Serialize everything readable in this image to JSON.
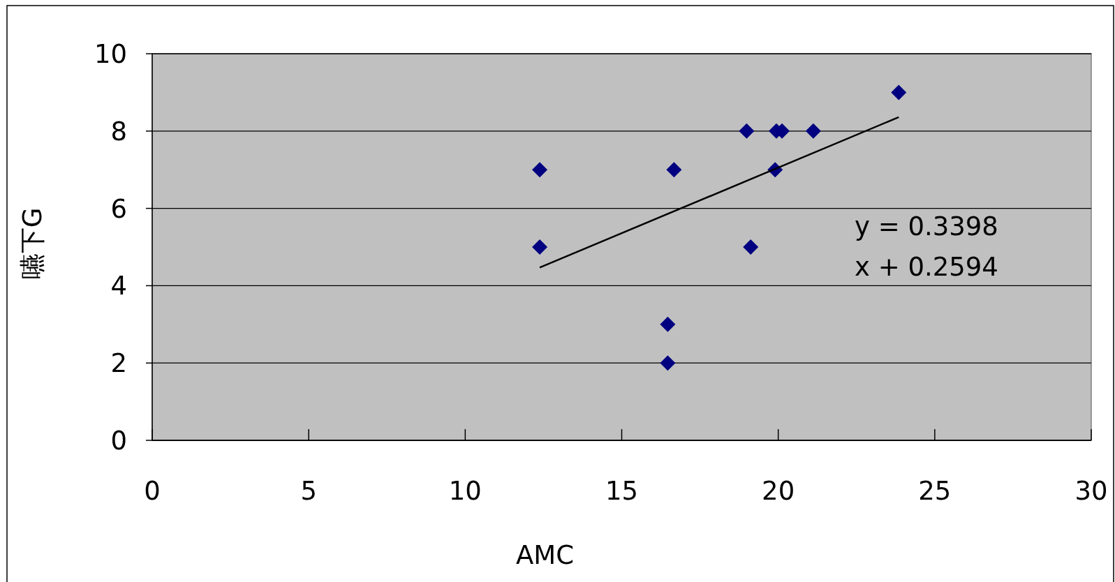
{
  "chart_data": {
    "type": "scatter",
    "xlabel": "AMC",
    "ylabel": "嚥下G",
    "series": [
      {
        "type": "scatter",
        "color": "#000080",
        "marker": "diamond",
        "x": [
          12.38,
          12.38,
          16.67,
          16.47,
          16.47,
          18.99,
          19.12,
          19.9,
          19.94,
          20.12,
          21.12,
          23.85
        ],
        "values": [
          7,
          5,
          7,
          3,
          2,
          8,
          5,
          7,
          8,
          8,
          8,
          9
        ]
      },
      {
        "type": "line",
        "color": "#000000",
        "line_style": "solid",
        "x": [
          12.38,
          23.85
        ],
        "values": [
          4.47,
          8.36
        ]
      }
    ],
    "xlim": [
      0,
      30
    ],
    "xticks": [
      0,
      5,
      10,
      15,
      20,
      25,
      30
    ],
    "ylim": [
      0,
      10
    ],
    "yticks": [
      0,
      2,
      4,
      6,
      8,
      10
    ],
    "grid": "y",
    "annotations": [
      "y = 0.3398 x + 0.2594"
    ]
  }
}
